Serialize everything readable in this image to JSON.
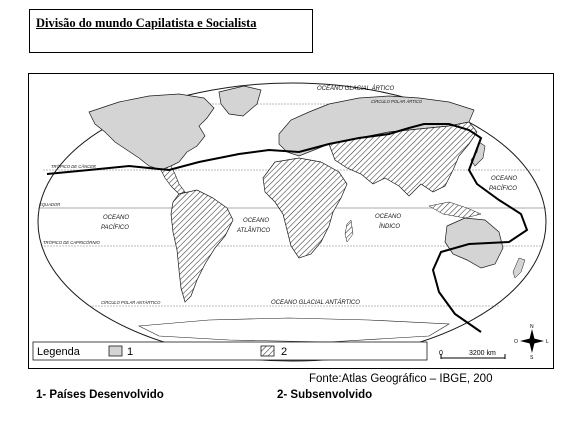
{
  "title": "Divisão  do mundo Capilatista e Socialista",
  "map": {
    "oceans": {
      "arctic": "OCEANO GLACIAL ÁRTICO",
      "antarctic": "OCEANO  GLACIAL  ANTÁRTICO",
      "pacific_west": [
        "OCEANO",
        "PACÍFICO"
      ],
      "pacific_east": [
        "OCEANO",
        "PACÍFICO"
      ],
      "atlantic": [
        "OCEANO",
        "ATLÂNTICO"
      ],
      "indian": [
        "OCEANO",
        "ÍNDICO"
      ]
    },
    "lines": {
      "arctic_circle": "CÍRCULO POLAR ÁRTICO",
      "tropic_cancer": "TRÓPICO DE CÂNCER",
      "equator": "EQUADOR",
      "tropic_capricorn": "TRÓPICO DE CAPRICÓRNIO",
      "antarctic_circle": "CÍRCULO POLAR ANTÁRTICO"
    },
    "colors": {
      "developed_fill": "#d4d4d4",
      "outline": "#1a1a1a",
      "hatch": "#333333"
    }
  },
  "legend": {
    "label": "Legenda",
    "item1": "1",
    "item2": "2"
  },
  "scale": {
    "zero": "0",
    "distance": "3200 km"
  },
  "compass": {
    "north": "N",
    "south": "S",
    "east": "L",
    "west": "O"
  },
  "source": "Fonte:Atlas Geográfico – IBGE, 200",
  "captions": {
    "item1": "1- Países Desenvolvido",
    "item2": "2- Subsenvolvido"
  }
}
